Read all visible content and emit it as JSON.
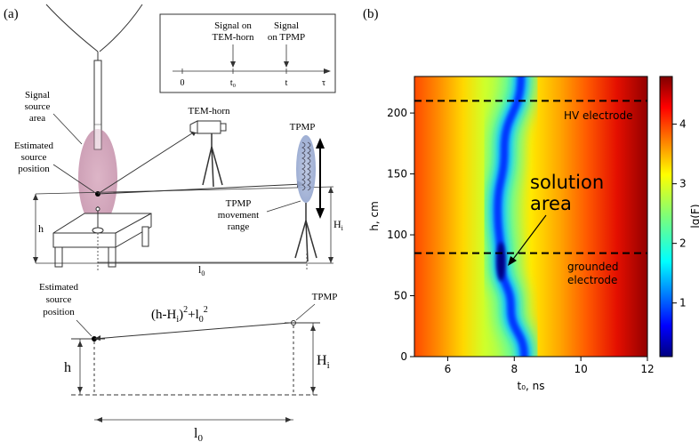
{
  "panel_a": {
    "label": "(a)",
    "timeline": {
      "signal_horn_line1": "Signal on",
      "signal_horn_line2": "TEM-horn",
      "signal_tpmp_line1": "Signal",
      "signal_tpmp_line2": "on TPMP",
      "tick_zero": "0",
      "tick_t0": "t₀",
      "tick_t": "t",
      "tick_tau": "τ"
    },
    "labels": {
      "signal_area_1": "Signal",
      "signal_area_2": "source",
      "signal_area_3": "area",
      "est_pos_1": "Estimated",
      "est_pos_2": "source",
      "est_pos_3": "position",
      "tem_horn": "TEM-horn",
      "tpmp": "TPMP",
      "tpmp_range_1": "TPMP",
      "tpmp_range_2": "movement",
      "tpmp_range_3": "range",
      "h": "h",
      "Hi": "H",
      "Hi_sub": "i",
      "l0": "l",
      "l0_sub": "0"
    },
    "lower": {
      "est_pos_1": "Estimated",
      "est_pos_2": "source",
      "est_pos_3": "position",
      "tpmp": "TPMP",
      "formula_pre": "(h-H",
      "formula_sub_i": "i",
      "formula_mid": ")",
      "formula_sup2": "2",
      "formula_plus": "+l",
      "formula_sub_0": "0",
      "formula_sup2b": "2",
      "h": "h",
      "Hi": "H",
      "Hi_sub": "i",
      "l0": "l",
      "l0_sub": "0"
    }
  },
  "panel_b": {
    "label": "(b)",
    "hv_label": "HV electrode",
    "grounded_label_1": "grounded",
    "grounded_label_2": "electrode",
    "solution_label_1": "solution",
    "solution_label_2": "area",
    "colorbar_label": "lg(F)",
    "colorbar_ticks": [
      "1",
      "2",
      "3",
      "4"
    ],
    "colorbar_tick_values": [
      1,
      2,
      3,
      4
    ]
  },
  "chart_data": {
    "type": "heatmap",
    "xlabel": "t₀, ns",
    "ylabel": "h, cm",
    "xlim": [
      5,
      12
    ],
    "ylim": [
      0,
      230
    ],
    "xticks": [
      6,
      8,
      10,
      12
    ],
    "yticks": [
      0,
      50,
      100,
      150,
      200
    ],
    "colorbar_label": "lg(F)",
    "colorbar_range": [
      0.1,
      4.8
    ],
    "colormap": "jet",
    "hv_electrode_h": 210,
    "grounded_electrode_h": 85,
    "solution_point": {
      "t0": 7.6,
      "h": 78
    },
    "minimum_valley_ridge": [
      {
        "h": 0,
        "t0": 8.3
      },
      {
        "h": 40,
        "t0": 7.9
      },
      {
        "h": 78,
        "t0": 7.6
      },
      {
        "h": 120,
        "t0": 7.5
      },
      {
        "h": 170,
        "t0": 7.7
      },
      {
        "h": 230,
        "t0": 8.2
      }
    ]
  }
}
